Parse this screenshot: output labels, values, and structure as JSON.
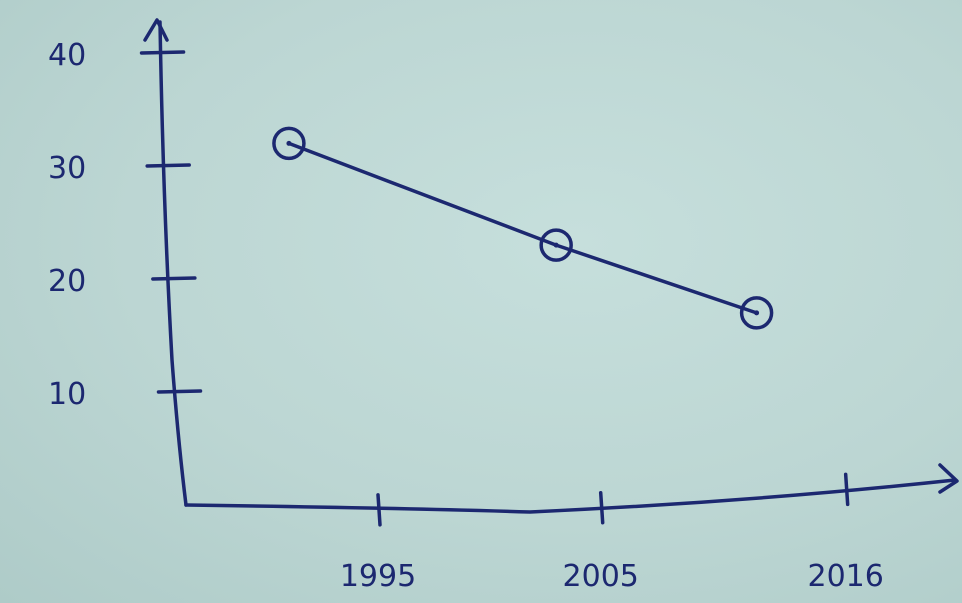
{
  "chart_data": {
    "type": "line",
    "x_ticks": [
      "1995",
      "2005",
      "2016"
    ],
    "y_ticks": [
      "10",
      "20",
      "30",
      "40"
    ],
    "ylim": [
      0,
      40
    ],
    "grid": false,
    "series": [
      {
        "points": [
          {
            "x": 1991,
            "y": 32
          },
          {
            "x": 2003,
            "y": 23
          },
          {
            "x": 2012,
            "y": 17
          }
        ]
      }
    ]
  }
}
